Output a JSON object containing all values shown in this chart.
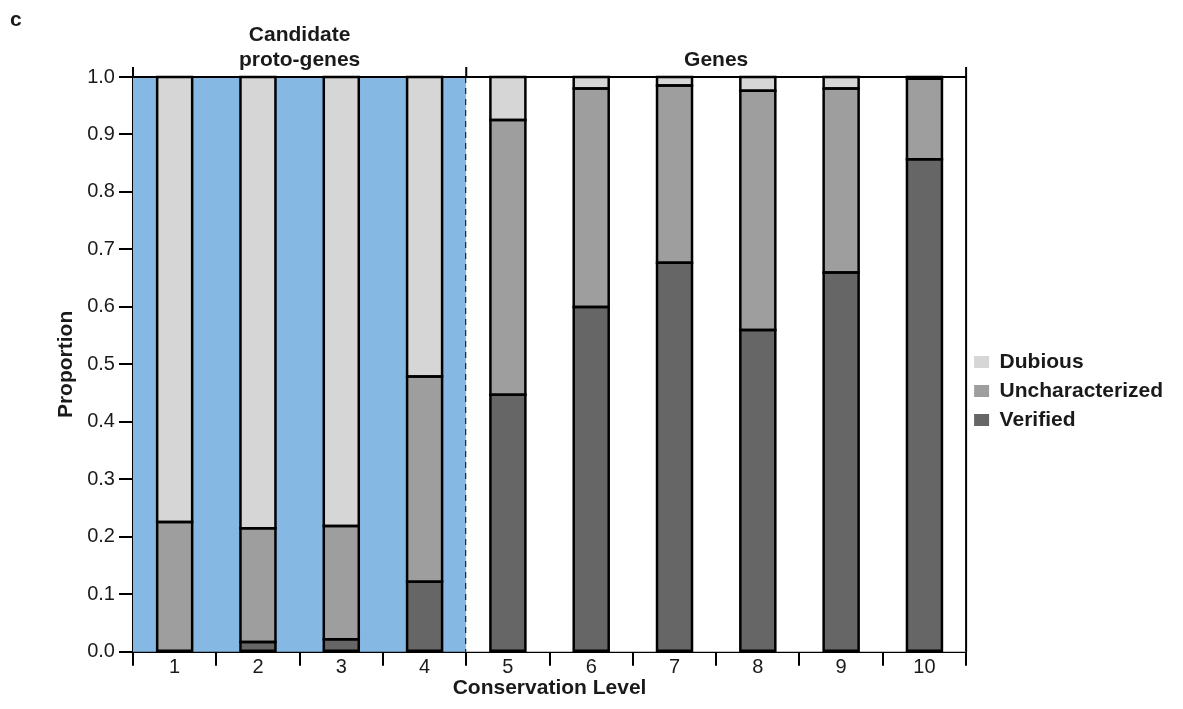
{
  "chart_data": {
    "type": "bar",
    "stacked": true,
    "categories": [
      "1",
      "2",
      "3",
      "4",
      "5",
      "6",
      "7",
      "8",
      "9",
      "10"
    ],
    "series": [
      {
        "name": "Verified",
        "color": "#666666",
        "values": [
          0,
          0.017,
          0.022,
          0.122,
          0.447,
          0.6,
          0.677,
          0.56,
          0.66,
          0.857
        ]
      },
      {
        "name": "Uncharacterized",
        "color": "#9e9e9e",
        "values": [
          0.226,
          0.198,
          0.197,
          0.357,
          0.478,
          0.38,
          0.308,
          0.416,
          0.32,
          0.14
        ]
      },
      {
        "name": "Dubious",
        "color": "#d6d6d6",
        "values": [
          0.774,
          0.785,
          0.781,
          0.521,
          0.075,
          0.02,
          0.015,
          0.024,
          0.02,
          0.003
        ]
      }
    ],
    "xlabel": "Conservation Level",
    "ylabel": "Proportion",
    "ylim": [
      0,
      1
    ],
    "yticks": [
      {
        "value": 0,
        "label": "0.0"
      },
      {
        "value": 0.1,
        "label": "0.1"
      },
      {
        "value": 0.2,
        "label": "0.2"
      },
      {
        "value": 0.3,
        "label": "0.3"
      },
      {
        "value": 0.4,
        "label": "0.4"
      },
      {
        "value": 0.5,
        "label": "0.5"
      },
      {
        "value": 0.6,
        "label": "0.6"
      },
      {
        "value": 0.7,
        "label": "0.7"
      },
      {
        "value": 0.8,
        "label": "0.8"
      },
      {
        "value": 0.9,
        "label": "0.9"
      },
      {
        "value": 1,
        "label": "1.0"
      }
    ],
    "bands": [
      {
        "axis": "x",
        "from": "1",
        "to": "4",
        "label": "Candidate proto-genes",
        "color": "#85b8e3"
      },
      {
        "axis": "x",
        "from": "5",
        "to": "10",
        "label": "Genes",
        "color": "#ffffff"
      }
    ],
    "annotations": [
      "c"
    ],
    "legend": "right",
    "grid": false
  }
}
